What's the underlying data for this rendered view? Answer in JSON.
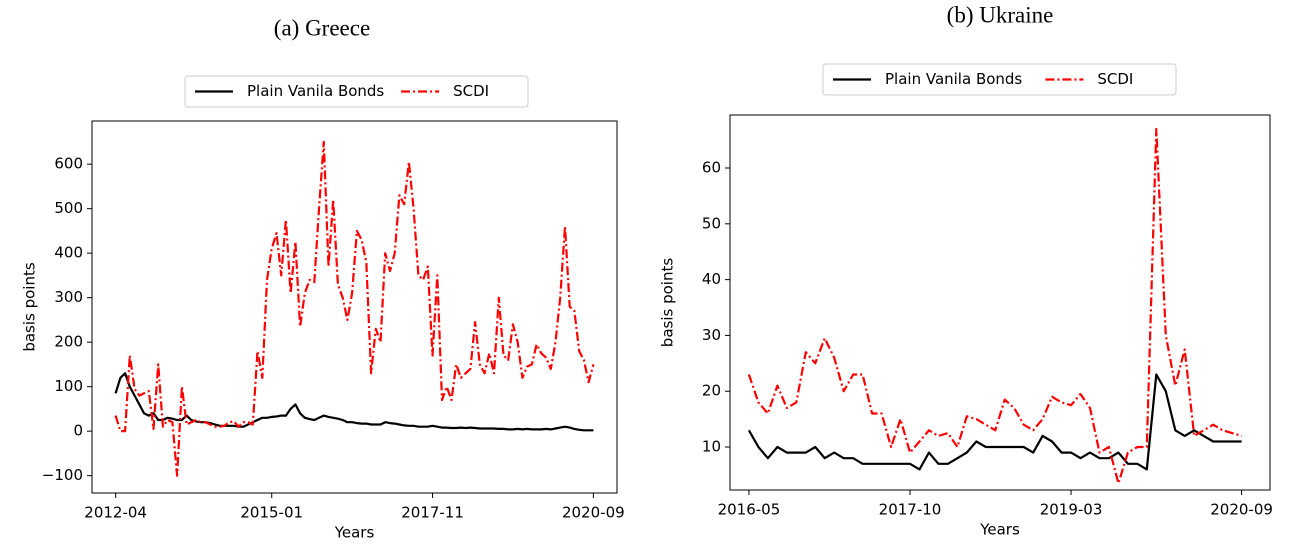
{
  "chart_data": [
    {
      "type": "line",
      "title": "(a) Greece",
      "xlabel": "Years",
      "ylabel": "basis points",
      "x": [
        "2012-04",
        "2012-05",
        "2012-06",
        "2012-07",
        "2012-08",
        "2012-09",
        "2012-10",
        "2012-11",
        "2012-12",
        "2013-01",
        "2013-02",
        "2013-03",
        "2013-04",
        "2013-05",
        "2013-06",
        "2013-07",
        "2013-08",
        "2013-09",
        "2013-10",
        "2013-11",
        "2013-12",
        "2014-01",
        "2014-02",
        "2014-03",
        "2014-04",
        "2014-05",
        "2014-06",
        "2014-07",
        "2014-08",
        "2014-09",
        "2014-10",
        "2014-11",
        "2014-12",
        "2015-01",
        "2015-02",
        "2015-03",
        "2015-04",
        "2015-05",
        "2015-06",
        "2015-07",
        "2015-08",
        "2015-09",
        "2015-10",
        "2015-11",
        "2015-12",
        "2016-01",
        "2016-02",
        "2016-03",
        "2016-04",
        "2016-05",
        "2016-06",
        "2016-07",
        "2016-08",
        "2016-09",
        "2016-10",
        "2016-11",
        "2016-12",
        "2017-01",
        "2017-02",
        "2017-03",
        "2017-04",
        "2017-05",
        "2017-06",
        "2017-07",
        "2017-08",
        "2017-09",
        "2017-10",
        "2017-11",
        "2017-12",
        "2018-01",
        "2018-02",
        "2018-03",
        "2018-04",
        "2018-05",
        "2018-06",
        "2018-07",
        "2018-08",
        "2018-09",
        "2018-10",
        "2018-11",
        "2018-12",
        "2019-01",
        "2019-02",
        "2019-03",
        "2019-04",
        "2019-05",
        "2019-06",
        "2019-07",
        "2019-08",
        "2019-09",
        "2019-10",
        "2019-11",
        "2019-12",
        "2020-01",
        "2020-02",
        "2020-03",
        "2020-04",
        "2020-05",
        "2020-06",
        "2020-07",
        "2020-08",
        "2020-09"
      ],
      "series": [
        {
          "name": "Plain Vanila Bonds",
          "color": "#000000",
          "dash": "solid",
          "values": [
            85,
            120,
            130,
            100,
            80,
            60,
            40,
            35,
            40,
            25,
            25,
            30,
            28,
            25,
            25,
            35,
            25,
            22,
            20,
            20,
            18,
            15,
            12,
            12,
            12,
            12,
            10,
            10,
            15,
            20,
            25,
            30,
            30,
            32,
            33,
            35,
            35,
            50,
            60,
            40,
            30,
            27,
            25,
            30,
            35,
            32,
            30,
            28,
            25,
            20,
            20,
            18,
            17,
            17,
            15,
            15,
            15,
            20,
            18,
            17,
            15,
            13,
            12,
            12,
            10,
            10,
            10,
            12,
            10,
            8,
            8,
            7,
            7,
            8,
            7,
            8,
            7,
            6,
            6,
            6,
            6,
            5,
            5,
            4,
            4,
            5,
            4,
            5,
            4,
            4,
            4,
            5,
            4,
            6,
            8,
            10,
            8,
            5,
            3,
            2,
            2,
            2
          ]
        },
        {
          "name": "SCDI",
          "color": "#ff0000",
          "dash": "dashdot",
          "values": [
            35,
            0,
            0,
            170,
            95,
            80,
            85,
            90,
            5,
            150,
            10,
            25,
            20,
            -100,
            100,
            15,
            20,
            25,
            20,
            20,
            15,
            10,
            10,
            12,
            20,
            22,
            10,
            20,
            20,
            15,
            180,
            120,
            340,
            410,
            445,
            350,
            475,
            310,
            425,
            235,
            310,
            340,
            335,
            500,
            650,
            370,
            520,
            330,
            300,
            250,
            310,
            450,
            430,
            380,
            130,
            230,
            200,
            400,
            360,
            400,
            530,
            510,
            605,
            500,
            350,
            340,
            370,
            170,
            350,
            70,
            100,
            70,
            150,
            120,
            130,
            140,
            245,
            150,
            130,
            175,
            130,
            300,
            170,
            160,
            240,
            200,
            120,
            145,
            150,
            195,
            175,
            165,
            140,
            200,
            300,
            460,
            280,
            270,
            180,
            160,
            110,
            150
          ]
        }
      ],
      "xlim": [
        "2011-11",
        "2021-02"
      ],
      "xticks": [
        "2012-04",
        "2015-01",
        "2017-11",
        "2020-09"
      ],
      "ylim": [
        -139,
        697
      ],
      "yticks": [
        {
          "value": -100,
          "label": "−100"
        },
        0,
        100,
        200,
        300,
        400,
        500,
        600
      ],
      "legend": "top-center"
    },
    {
      "type": "line",
      "title": "(b) Ukraine",
      "xlabel": "Years",
      "ylabel": "basis points",
      "x": [
        "2016-05",
        "2016-06",
        "2016-07",
        "2016-08",
        "2016-09",
        "2016-10",
        "2016-11",
        "2016-12",
        "2017-01",
        "2017-02",
        "2017-03",
        "2017-04",
        "2017-05",
        "2017-06",
        "2017-07",
        "2017-08",
        "2017-09",
        "2017-10",
        "2017-11",
        "2017-12",
        "2018-01",
        "2018-02",
        "2018-03",
        "2018-04",
        "2018-05",
        "2018-06",
        "2018-07",
        "2018-08",
        "2018-09",
        "2018-10",
        "2018-11",
        "2018-12",
        "2019-01",
        "2019-02",
        "2019-03",
        "2019-04",
        "2019-05",
        "2019-06",
        "2019-07",
        "2019-08",
        "2019-09",
        "2019-10",
        "2019-11",
        "2019-12",
        "2020-01",
        "2020-02",
        "2020-03",
        "2020-04",
        "2020-05",
        "2020-06",
        "2020-07",
        "2020-08",
        "2020-09"
      ],
      "series": [
        {
          "name": "Plain Vanila Bonds",
          "color": "#000000",
          "dash": "solid",
          "values": [
            13,
            10,
            8,
            10,
            9,
            9,
            9,
            10,
            8,
            9,
            8,
            8,
            7,
            7,
            7,
            7,
            7,
            7,
            6,
            9,
            7,
            7,
            8,
            9,
            11,
            10,
            10,
            10,
            10,
            10,
            9,
            12,
            11,
            9,
            9,
            8,
            9,
            8,
            8,
            9,
            7,
            7,
            6,
            23,
            20,
            13,
            12,
            13,
            12,
            11,
            11,
            11,
            11
          ]
        },
        {
          "name": "SCDI",
          "color": "#ff0000",
          "dash": "dashdot",
          "values": [
            23,
            18,
            16,
            21,
            17,
            18,
            27,
            25,
            29.5,
            26,
            20,
            23,
            23,
            16,
            16,
            10,
            15,
            9,
            11,
            13,
            12,
            12.5,
            10,
            15.5,
            15,
            14,
            13,
            18.5,
            17,
            14,
            13,
            15,
            19,
            18,
            17.5,
            19.5,
            17,
            9,
            10,
            3.5,
            9,
            10,
            10,
            67,
            30,
            21,
            27.5,
            12,
            13,
            14,
            13,
            12.5,
            12
          ]
        }
      ],
      "xlim": [
        "2016-03",
        "2020-12"
      ],
      "xticks": [
        "2016-05",
        "2017-10",
        "2019-03",
        "2020-09"
      ],
      "ylim": [
        2.3,
        69.5
      ],
      "yticks": [
        10,
        20,
        30,
        40,
        50,
        60
      ],
      "legend": "top-center"
    }
  ]
}
